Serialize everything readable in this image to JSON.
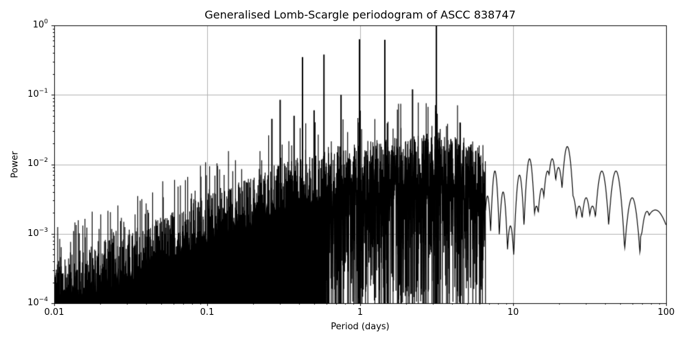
{
  "chart_data": {
    "type": "line",
    "title": "Generalised Lomb-Scargle periodogram of ASCC 838747",
    "xlabel": "Period (days)",
    "ylabel": "Power",
    "xscale": "log",
    "yscale": "log",
    "xlim": [
      0.01,
      100
    ],
    "ylim": [
      0.0001,
      1
    ],
    "grid": true,
    "legend": null,
    "x_ticks": [
      {
        "value": 0.01,
        "label": "0.01"
      },
      {
        "value": 0.1,
        "label": "0.1"
      },
      {
        "value": 1,
        "label": "1"
      },
      {
        "value": 10,
        "label": "10"
      },
      {
        "value": 100,
        "label": "100"
      }
    ],
    "y_ticks": [
      {
        "value": 1,
        "base": "10",
        "exp": "0"
      },
      {
        "value": 0.1,
        "base": "10",
        "exp": "−1"
      },
      {
        "value": 0.01,
        "base": "10",
        "exp": "−2"
      },
      {
        "value": 0.001,
        "base": "10",
        "exp": "−3"
      },
      {
        "value": 0.0001,
        "base": "10",
        "exp": "−4"
      }
    ],
    "line_color": "#000000",
    "grid_color": "#b0b0b0",
    "prominent_peaks": [
      {
        "period": 3.15,
        "power": 1.0
      },
      {
        "period": 0.99,
        "power": 0.63
      },
      {
        "period": 1.45,
        "power": 0.62
      },
      {
        "period": 0.58,
        "power": 0.38
      },
      {
        "period": 0.42,
        "power": 0.35
      },
      {
        "period": 0.3,
        "power": 0.085
      },
      {
        "period": 0.265,
        "power": 0.045
      },
      {
        "period": 0.37,
        "power": 0.05
      },
      {
        "period": 0.5,
        "power": 0.06
      },
      {
        "period": 0.75,
        "power": 0.1
      },
      {
        "period": 2.2,
        "power": 0.12
      },
      {
        "period": 4.5,
        "power": 0.04
      },
      {
        "period": 22.6,
        "power": 0.018
      },
      {
        "period": 18.0,
        "power": 0.012
      },
      {
        "period": 38.0,
        "power": 0.008
      },
      {
        "period": 47.0,
        "power": 0.008
      },
      {
        "period": 60.0,
        "power": 0.0033
      },
      {
        "period": 75.0,
        "power": 0.0021
      },
      {
        "period": 87.0,
        "power": 0.0019
      }
    ],
    "envelope": [
      {
        "period": 0.01,
        "power": 0.00018
      },
      {
        "period": 0.03,
        "power": 0.0004
      },
      {
        "period": 0.1,
        "power": 0.0015
      },
      {
        "period": 0.3,
        "power": 0.004
      },
      {
        "period": 1.0,
        "power": 0.008
      },
      {
        "period": 3.0,
        "power": 0.012
      },
      {
        "period": 10.0,
        "power": 0.006
      },
      {
        "period": 30.0,
        "power": 0.006
      },
      {
        "period": 100.0,
        "power": 0.0004
      }
    ],
    "long_period_lobes": [
      {
        "period": 6.8,
        "power": 0.0035
      },
      {
        "period": 7.6,
        "power": 0.008
      },
      {
        "period": 8.6,
        "power": 0.004
      },
      {
        "period": 9.6,
        "power": 0.0013
      },
      {
        "period": 11.0,
        "power": 0.007
      },
      {
        "period": 12.8,
        "power": 0.012
      },
      {
        "period": 14.2,
        "power": 0.0025
      },
      {
        "period": 15.4,
        "power": 0.0045
      },
      {
        "period": 16.8,
        "power": 0.008
      },
      {
        "period": 19.8,
        "power": 0.009
      },
      {
        "period": 24.5,
        "power": 0.0035
      },
      {
        "period": 27.0,
        "power": 0.0025
      },
      {
        "period": 30.0,
        "power": 0.0033
      },
      {
        "period": 33.0,
        "power": 0.0025
      }
    ]
  }
}
